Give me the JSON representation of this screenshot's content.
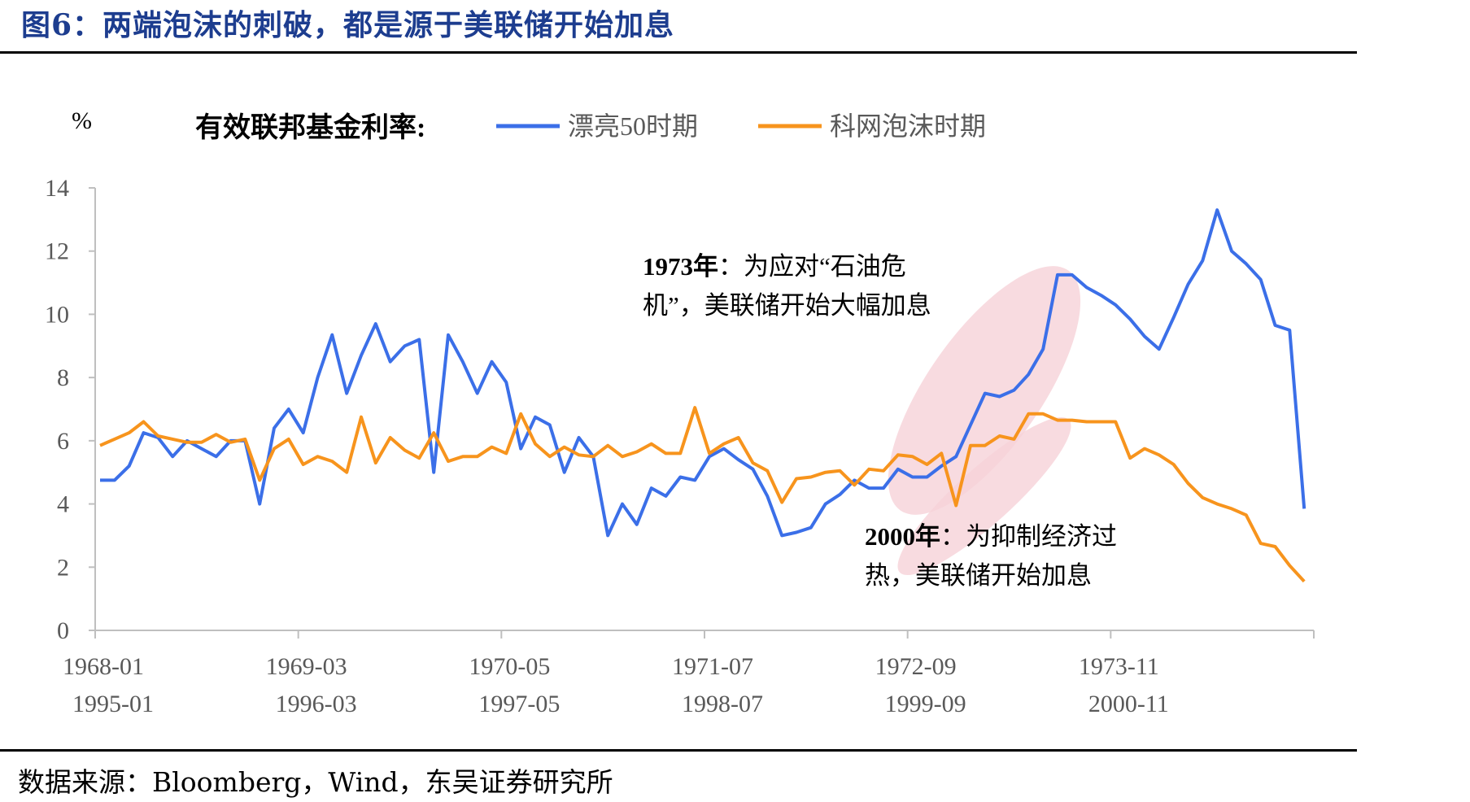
{
  "title": "图6：两端泡沫的刺破，都是源于美联储开始加息",
  "source": "数据来源：Bloomberg，Wind，东吴证券研究所",
  "colors": {
    "series_a": "#3b6fe8",
    "series_b": "#f7941d",
    "title": "#1d3d8f",
    "highlight": "#f6d2d8"
  },
  "chart_data": {
    "type": "line",
    "unit_label": "%",
    "legend_title": "有效联邦基金利率:",
    "legend_placement": "top",
    "ylim": [
      0,
      14
    ],
    "yticks": [
      0,
      2,
      4,
      6,
      8,
      10,
      12,
      14
    ],
    "xticks_row1": [
      "1968-01",
      "1969-03",
      "1970-05",
      "1971-07",
      "1972-09",
      "1973-11"
    ],
    "xticks_row2": [
      "1995-01",
      "1996-03",
      "1997-05",
      "1998-07",
      "1999-09",
      "2000-11"
    ],
    "grid": false,
    "series": [
      {
        "name": "漂亮50时期",
        "x_start": "1968-01",
        "values": [
          4.75,
          4.75,
          5.2,
          6.25,
          6.1,
          5.5,
          6.0,
          5.75,
          5.5,
          6.0,
          6.0,
          4.0,
          6.4,
          7.0,
          6.25,
          8.0,
          9.35,
          7.5,
          8.7,
          9.7,
          8.5,
          9.0,
          9.2,
          5.0,
          9.35,
          8.5,
          7.5,
          8.5,
          7.85,
          5.75,
          6.75,
          6.5,
          5.0,
          6.1,
          5.5,
          3.0,
          4.0,
          3.35,
          4.5,
          4.25,
          4.85,
          4.75,
          5.5,
          5.75,
          5.4,
          5.1,
          4.25,
          3.0,
          3.1,
          3.25,
          4.0,
          4.3,
          4.75,
          4.5,
          4.5,
          5.1,
          4.85,
          4.85,
          5.2,
          5.5,
          6.5,
          7.5,
          7.4,
          7.6,
          8.1,
          8.9,
          11.25,
          11.25,
          10.85,
          10.6,
          10.3,
          9.85,
          9.3,
          8.9,
          9.9,
          10.95,
          11.7,
          13.3,
          12.0,
          11.6,
          11.1,
          9.65,
          9.5,
          3.85
        ]
      },
      {
        "name": "科网泡沫时期",
        "x_start": "1995-01",
        "values": [
          5.85,
          6.05,
          6.25,
          6.6,
          6.15,
          6.05,
          5.95,
          5.95,
          6.2,
          5.95,
          6.05,
          4.75,
          5.75,
          6.05,
          5.25,
          5.5,
          5.35,
          5.0,
          6.75,
          5.3,
          6.1,
          5.7,
          5.45,
          6.25,
          5.35,
          5.5,
          5.5,
          5.8,
          5.6,
          6.85,
          5.9,
          5.5,
          5.8,
          5.55,
          5.5,
          5.85,
          5.5,
          5.65,
          5.9,
          5.6,
          5.6,
          7.05,
          5.6,
          5.9,
          6.1,
          5.3,
          5.05,
          4.05,
          4.8,
          4.85,
          5.0,
          5.05,
          4.6,
          5.1,
          5.05,
          5.55,
          5.5,
          5.25,
          5.6,
          3.95,
          5.85,
          5.85,
          6.15,
          6.05,
          6.85,
          6.85,
          6.65,
          6.65,
          6.6,
          6.6,
          6.6,
          5.45,
          5.75,
          5.55,
          5.25,
          4.65,
          4.2,
          4.0,
          3.85,
          3.65,
          2.75,
          2.65,
          2.05,
          1.55
        ]
      }
    ],
    "annotations": [
      {
        "bold": "1973年",
        "text_line1": "：为应对“石油危",
        "text_line2": "机”，美联储开始大幅加息"
      },
      {
        "bold": "2000年",
        "text_line1": "：为抑制经济过",
        "text_line2": "热，美联储开始加息"
      }
    ]
  }
}
